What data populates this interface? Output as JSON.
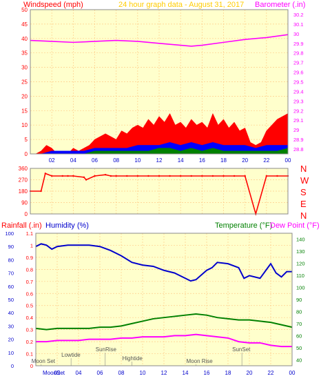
{
  "colors": {
    "plot_bg": "#ffffcc",
    "frame_bg": "#ffffff",
    "grid": "#ffcc88",
    "wind_gust": "#ff0000",
    "wind_avg": "#0000ff",
    "wind_lo": "#008000",
    "barometer": "#ff00ff",
    "direction": "#ff0000",
    "humidity": "#0000cc",
    "temperature": "#008000",
    "dewpoint": "#ff00ff",
    "rain_axis": "#ff0000",
    "annotation": "#555555"
  },
  "header": {
    "windspeed_label": "Windspeed (mph)",
    "title": "24 hour graph data - August 31, 2017",
    "barometer_label": "Barometer (.in)"
  },
  "lower_labels": {
    "rainfall": "Rainfall (.in)",
    "humidity": "Humidity (%)",
    "temperature": "Temperature (°F)",
    "dewpoint": "Dew Point (°F)"
  },
  "compass": [
    "N",
    "W",
    "S",
    "E",
    "N"
  ],
  "annotations": [
    {
      "label": "Lowtide",
      "hour": 3.3
    },
    {
      "label": "SunRise",
      "hour": 6.5
    },
    {
      "label": "Hightide",
      "hour": 9.0
    },
    {
      "label": "Moon Set",
      "hour": 0.5
    },
    {
      "label": "Moon Rise",
      "hour": 15.0
    },
    {
      "label": "SunSet",
      "hour": 19.3
    },
    {
      "label": "MoonSet",
      "hour": 0.5
    }
  ],
  "chart_data": [
    {
      "type": "area",
      "name": "wind_barometer",
      "x_ticks": [
        "02",
        "04",
        "06",
        "08",
        "10",
        "12",
        "14",
        "16",
        "18",
        "20",
        "22",
        "00"
      ],
      "x_range_hours": [
        0,
        24
      ],
      "y_left_ticks": [
        "0",
        "5",
        "10",
        "15",
        "20",
        "25",
        "30",
        "35",
        "40",
        "45",
        "50"
      ],
      "y_left_range": [
        0,
        50
      ],
      "y_right_ticks": [
        "28.8",
        "28.9",
        "29",
        "29.1",
        "29.2",
        "29.3",
        "29.4",
        "29.5",
        "29.6",
        "29.7",
        "29.8",
        "29.9",
        "30",
        "30.1",
        "30.2"
      ],
      "y_right_range": [
        28.75,
        30.25
      ],
      "series": [
        {
          "name": "gust",
          "x": [
            0,
            0.5,
            1,
            1.5,
            2,
            2.5,
            3,
            3.5,
            4,
            4.5,
            5,
            5.5,
            6,
            6.5,
            7,
            7.5,
            8,
            8.5,
            9,
            9.5,
            10,
            10.5,
            11,
            11.5,
            12,
            12.5,
            13,
            13.5,
            14,
            14.5,
            15,
            15.5,
            16,
            16.5,
            17,
            17.5,
            18,
            18.5,
            19,
            19.5,
            20,
            20.5,
            21,
            21.5,
            22,
            22.5,
            23,
            23.5,
            24
          ],
          "y": [
            0,
            0,
            1,
            3,
            2,
            0,
            1,
            0,
            2,
            1,
            2,
            3,
            5,
            6,
            7,
            6,
            5,
            8,
            7,
            9,
            10,
            9,
            12,
            10,
            13,
            11,
            14,
            10,
            11,
            9,
            12,
            10,
            11,
            9,
            14,
            10,
            12,
            9,
            11,
            8,
            9,
            4,
            3,
            4,
            8,
            10,
            12,
            13,
            14
          ]
        },
        {
          "name": "avg",
          "x": [
            0,
            1,
            2,
            3,
            4,
            5,
            6,
            7,
            8,
            9,
            10,
            11,
            12,
            13,
            14,
            15,
            16,
            17,
            18,
            19,
            20,
            21,
            22,
            23,
            24
          ],
          "y": [
            0,
            0,
            1,
            1,
            1,
            1,
            2,
            2,
            2,
            2,
            3,
            3,
            3,
            4,
            3,
            4,
            3,
            4,
            3,
            3,
            3,
            2,
            3,
            3,
            3
          ]
        },
        {
          "name": "lo",
          "x": [
            0,
            1,
            2,
            3,
            4,
            5,
            6,
            7,
            8,
            9,
            10,
            11,
            12,
            13,
            14,
            15,
            16,
            17,
            18,
            19,
            20,
            21,
            22,
            23,
            24
          ],
          "y": [
            0,
            0,
            0,
            0,
            0,
            0,
            1,
            1,
            1,
            1,
            1,
            1,
            2,
            2,
            1,
            2,
            1,
            2,
            1,
            1,
            1,
            1,
            1,
            1,
            2
          ]
        },
        {
          "name": "barometer",
          "x": [
            0,
            2,
            4,
            6,
            8,
            10,
            12,
            14,
            15,
            16,
            18,
            20,
            22,
            24
          ],
          "y": [
            29.93,
            29.92,
            29.91,
            29.92,
            29.93,
            29.92,
            29.9,
            29.88,
            29.87,
            29.88,
            29.91,
            29.94,
            29.96,
            29.99
          ]
        }
      ]
    },
    {
      "type": "scatter",
      "name": "wind_direction",
      "y_ticks": [
        "0",
        "90",
        "180",
        "270",
        "360"
      ],
      "y_range": [
        0,
        360
      ],
      "series": [
        {
          "name": "direction",
          "x": [
            0,
            1,
            1.4,
            2,
            3,
            3.5,
            4,
            5,
            5.2,
            6,
            7,
            7.5,
            8,
            9,
            10,
            11,
            12,
            13,
            14,
            15,
            16,
            17,
            18,
            19,
            20,
            21,
            22,
            23,
            24
          ],
          "y": [
            180,
            180,
            320,
            300,
            300,
            300,
            300,
            290,
            270,
            300,
            310,
            300,
            300,
            300,
            300,
            300,
            300,
            300,
            300,
            300,
            300,
            300,
            300,
            300,
            300,
            0,
            300,
            300,
            300
          ]
        }
      ]
    },
    {
      "type": "line",
      "name": "humidity_temperature",
      "x_ticks": [
        "02",
        "04",
        "06",
        "08",
        "10",
        "12",
        "14",
        "16",
        "18",
        "20",
        "22",
        "00"
      ],
      "y_rain_ticks": [
        "0",
        "0.1",
        "0.2",
        "0.3",
        "0.4",
        "0.5",
        "0.6",
        "0.7",
        "0.8",
        "0.9",
        "1",
        "1.1"
      ],
      "y_rain_range": [
        0,
        1.1
      ],
      "y_humidity_ticks": [
        "0",
        "10",
        "20",
        "30",
        "40",
        "50",
        "60",
        "70",
        "80",
        "90",
        "100"
      ],
      "y_humidity_range": [
        0,
        100
      ],
      "y_temp_ticks": [
        "40",
        "50",
        "60",
        "70",
        "80",
        "90",
        "100",
        "110",
        "120",
        "130",
        "140"
      ],
      "y_temp_range": [
        35,
        145
      ],
      "series": [
        {
          "name": "humidity",
          "axis": "humidity",
          "x": [
            0,
            0.5,
            1,
            1.5,
            2,
            3,
            4,
            5,
            6,
            7,
            8,
            9,
            10,
            11,
            12,
            13,
            14,
            14.5,
            15,
            16,
            16.5,
            17,
            18,
            19,
            19.5,
            20,
            21,
            22,
            22.5,
            23,
            23.5,
            24
          ],
          "y": [
            90,
            92,
            91,
            88,
            90,
            91,
            91,
            91,
            90,
            87,
            83,
            78,
            76,
            75,
            72,
            70,
            66,
            64,
            65,
            72,
            74,
            78,
            77,
            74,
            66,
            68,
            66,
            77,
            70,
            67,
            71,
            71
          ]
        },
        {
          "name": "temperature",
          "axis": "temp",
          "x": [
            0,
            1,
            2,
            3,
            4,
            5,
            6,
            7,
            8,
            9,
            10,
            11,
            12,
            13,
            14,
            15,
            16,
            17,
            18,
            19,
            20,
            21,
            22,
            23,
            24
          ],
          "y": [
            66,
            65,
            66,
            66,
            66,
            66,
            67,
            67,
            68,
            70,
            72,
            74,
            75,
            76,
            77,
            78,
            77,
            75,
            74,
            73,
            73,
            72,
            71,
            69,
            67
          ]
        },
        {
          "name": "dewpoint",
          "axis": "temp",
          "x": [
            0,
            1,
            2,
            3,
            4,
            5,
            6,
            7,
            8,
            9,
            10,
            11,
            12,
            13,
            14,
            15,
            16,
            17,
            18,
            19,
            20,
            21,
            22,
            23,
            24
          ],
          "y": [
            55,
            55,
            56,
            56,
            56,
            57,
            57,
            57,
            58,
            58,
            59,
            59,
            59,
            60,
            60,
            61,
            60,
            59,
            58,
            55,
            54,
            54,
            52,
            51,
            51
          ]
        }
      ]
    }
  ]
}
